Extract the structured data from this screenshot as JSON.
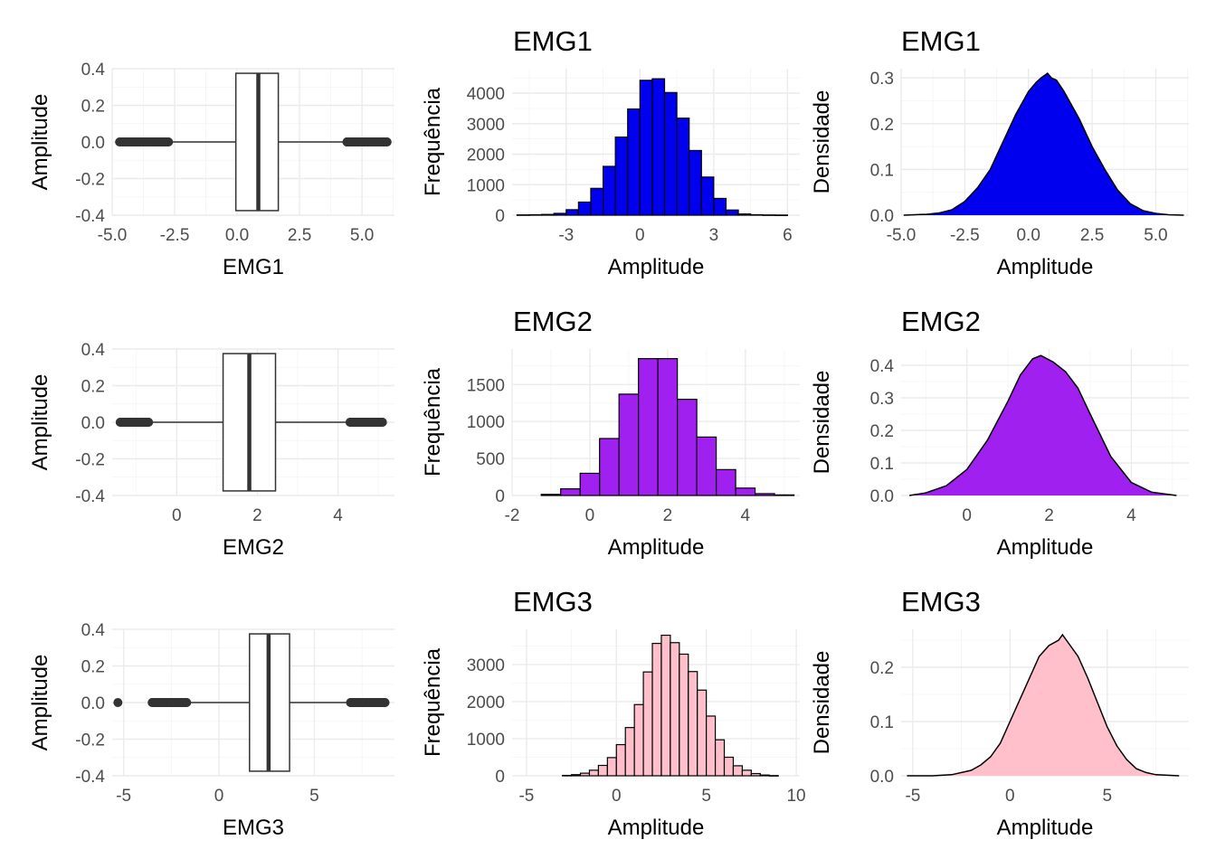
{
  "chart_data": [
    {
      "id": "box-emg1",
      "type": "box",
      "ylabel": "Amplitude",
      "xlabel": "EMG1",
      "title": "",
      "ylim": [
        -0.4,
        0.4
      ],
      "yticks": [
        -0.4,
        -0.2,
        0.0,
        0.2,
        0.4
      ],
      "ytick_labels": [
        "-0.4",
        "-0.2",
        "0.0",
        "0.2",
        "0.4"
      ],
      "xlim": [
        -5.0,
        6.3
      ],
      "xticks": [
        -5.0,
        -2.5,
        0.0,
        2.5,
        5.0
      ],
      "xtick_labels": [
        "-5.0",
        "-2.5",
        "0.0",
        "2.5",
        "5.0"
      ],
      "box": {
        "q1": -0.05,
        "median": 0.85,
        "q3": 1.65,
        "whisker_low": -2.7,
        "whisker_high": 4.3
      },
      "outliers": [
        -4.7,
        -4.3,
        -4.1,
        -3.9,
        -3.7,
        -3.5,
        -3.3,
        -3.1,
        -2.9,
        -2.75,
        4.4,
        4.6,
        4.8,
        5.0,
        5.2,
        5.4,
        5.6,
        5.9,
        6.0
      ],
      "colors": {
        "box_fill": "#ffffff",
        "box_line": "#333333"
      }
    },
    {
      "id": "hist-emg1",
      "type": "histogram",
      "title": "EMG1",
      "xlabel": "Amplitude",
      "ylabel": "Frequência",
      "xlim": [
        -5.2,
        6.5
      ],
      "ylim": [
        0,
        4800
      ],
      "xticks": [
        -3,
        0,
        3,
        6
      ],
      "xtick_labels": [
        "-3",
        "0",
        "3",
        "6"
      ],
      "yticks": [
        0,
        1000,
        2000,
        3000,
        4000
      ],
      "ytick_labels": [
        "0",
        "1000",
        "2000",
        "3000",
        "4000"
      ],
      "bin_width": 0.5,
      "bins": [
        [
          -4.75,
          10
        ],
        [
          -4.25,
          15
        ],
        [
          -3.75,
          25
        ],
        [
          -3.25,
          60
        ],
        [
          -2.75,
          180
        ],
        [
          -2.25,
          430
        ],
        [
          -1.75,
          880
        ],
        [
          -1.25,
          1600
        ],
        [
          -0.75,
          2560
        ],
        [
          -0.25,
          3480
        ],
        [
          0.25,
          4420
        ],
        [
          0.75,
          4470
        ],
        [
          1.25,
          4020
        ],
        [
          1.75,
          3180
        ],
        [
          2.25,
          2120
        ],
        [
          2.75,
          1250
        ],
        [
          3.25,
          550
        ],
        [
          3.75,
          170
        ],
        [
          4.25,
          40
        ],
        [
          4.75,
          15
        ],
        [
          5.25,
          8
        ],
        [
          5.75,
          5
        ]
      ],
      "colors": {
        "fill": "#0000ee",
        "line": "#000000"
      }
    },
    {
      "id": "dens-emg1",
      "type": "area",
      "title": "EMG1",
      "xlabel": "Amplitude",
      "ylabel": "Densidade",
      "xlim": [
        -5.0,
        6.3
      ],
      "ylim": [
        0,
        0.32
      ],
      "xticks": [
        -5.0,
        -2.5,
        0.0,
        2.5,
        5.0
      ],
      "xtick_labels": [
        "-5.0",
        "-2.5",
        "0.0",
        "2.5",
        "5.0"
      ],
      "yticks": [
        0,
        0.1,
        0.2,
        0.3
      ],
      "ytick_labels": [
        "0.0",
        "0.1",
        "0.2",
        "0.3"
      ],
      "x": [
        -4.9,
        -4,
        -3.5,
        -3,
        -2.5,
        -2,
        -1.5,
        -1,
        -0.5,
        0,
        0.3,
        0.5,
        0.75,
        0.9,
        1.1,
        1.4,
        2,
        2.5,
        3,
        3.5,
        4,
        4.5,
        5,
        5.5,
        6.1
      ],
      "y": [
        0.0,
        0.002,
        0.005,
        0.012,
        0.03,
        0.06,
        0.1,
        0.16,
        0.22,
        0.27,
        0.29,
        0.3,
        0.31,
        0.3,
        0.295,
        0.27,
        0.21,
        0.15,
        0.1,
        0.055,
        0.025,
        0.01,
        0.004,
        0.001,
        0.0
      ],
      "colors": {
        "fill": "#0000ee",
        "line": "#000000"
      }
    },
    {
      "id": "box-emg2",
      "type": "box",
      "ylabel": "Amplitude",
      "xlabel": "EMG2",
      "title": "",
      "ylim": [
        -0.4,
        0.4
      ],
      "yticks": [
        -0.4,
        -0.2,
        0.0,
        0.2,
        0.4
      ],
      "ytick_labels": [
        "-0.4",
        "-0.2",
        "0.0",
        "0.2",
        "0.4"
      ],
      "xlim": [
        -1.6,
        5.4
      ],
      "xticks": [
        0,
        2,
        4
      ],
      "xtick_labels": [
        "0",
        "2",
        "4"
      ],
      "box": {
        "q1": 1.15,
        "median": 1.8,
        "q3": 2.45,
        "whisker_low": -0.6,
        "whisker_high": 4.2
      },
      "outliers": [
        -1.4,
        -1.3,
        -1.2,
        -1.1,
        -1.0,
        -0.9,
        -0.8,
        -0.7,
        4.3,
        4.4,
        4.5,
        4.6,
        4.7,
        4.8,
        4.9,
        5.1
      ],
      "colors": {
        "box_fill": "#ffffff",
        "box_line": "#333333"
      }
    },
    {
      "id": "hist-emg2",
      "type": "histogram",
      "title": "EMG2",
      "xlabel": "Amplitude",
      "ylabel": "Frequência",
      "xlim": [
        -2,
        5.4
      ],
      "ylim": [
        0,
        1980
      ],
      "xticks": [
        -2,
        0,
        2,
        4
      ],
      "xtick_labels": [
        "-2",
        "0",
        "2",
        "4"
      ],
      "yticks": [
        0,
        500,
        1000,
        1500
      ],
      "ytick_labels": [
        "0",
        "500",
        "1000",
        "1500"
      ],
      "bin_width": 0.5,
      "bins": [
        [
          -1.0,
          15
        ],
        [
          -0.5,
          90
        ],
        [
          0.0,
          300
        ],
        [
          0.5,
          770
        ],
        [
          1.0,
          1370
        ],
        [
          1.5,
          1850
        ],
        [
          2.0,
          1850
        ],
        [
          2.5,
          1300
        ],
        [
          3.0,
          790
        ],
        [
          3.5,
          350
        ],
        [
          4.0,
          100
        ],
        [
          4.5,
          25
        ],
        [
          5.0,
          8
        ]
      ],
      "colors": {
        "fill": "#a020f0",
        "line": "#000000"
      }
    },
    {
      "id": "dens-emg2",
      "type": "area",
      "title": "EMG2",
      "xlabel": "Amplitude",
      "ylabel": "Densidade",
      "xlim": [
        -1.6,
        5.4
      ],
      "ylim": [
        0,
        0.45
      ],
      "xticks": [
        0,
        2,
        4
      ],
      "xtick_labels": [
        "0",
        "2",
        "4"
      ],
      "yticks": [
        0,
        0.1,
        0.2,
        0.3,
        0.4
      ],
      "ytick_labels": [
        "0.0",
        "0.1",
        "0.2",
        "0.3",
        "0.4"
      ],
      "x": [
        -1.4,
        -1,
        -0.5,
        0,
        0.5,
        1,
        1.3,
        1.6,
        1.8,
        2.1,
        2.4,
        2.7,
        3,
        3.5,
        4,
        4.5,
        5.1
      ],
      "y": [
        0.0,
        0.008,
        0.03,
        0.08,
        0.17,
        0.29,
        0.37,
        0.42,
        0.43,
        0.41,
        0.38,
        0.33,
        0.25,
        0.12,
        0.04,
        0.01,
        0.0
      ],
      "colors": {
        "fill": "#a020f0",
        "line": "#000000"
      }
    },
    {
      "id": "box-emg3",
      "type": "box",
      "ylabel": "Amplitude",
      "xlabel": "EMG3",
      "title": "",
      "ylim": [
        -0.4,
        0.4
      ],
      "yticks": [
        -0.4,
        -0.2,
        0.0,
        0.2,
        0.4
      ],
      "ytick_labels": [
        "-0.4",
        "-0.2",
        "0.0",
        "0.2",
        "0.4"
      ],
      "xlim": [
        -5.6,
        9.2
      ],
      "xticks": [
        -5,
        0,
        5
      ],
      "xtick_labels": [
        "-5",
        "0",
        "5"
      ],
      "box": {
        "q1": 1.6,
        "median": 2.6,
        "q3": 3.7,
        "whisker_low": -1.5,
        "whisker_high": 6.7
      },
      "outliers": [
        -5.3,
        -3.5,
        -3.3,
        -3.1,
        -2.9,
        -2.7,
        -2.5,
        -2.3,
        -2.1,
        -1.9,
        -1.7,
        6.9,
        7.1,
        7.3,
        7.5,
        7.7,
        7.9,
        8.1,
        8.4,
        8.7
      ],
      "colors": {
        "box_fill": "#ffffff",
        "box_line": "#333333"
      }
    },
    {
      "id": "hist-emg3",
      "type": "histogram",
      "title": "EMG3",
      "xlabel": "Amplitude",
      "ylabel": "Frequência",
      "xlim": [
        -5.8,
        10.2
      ],
      "ylim": [
        0,
        3950
      ],
      "xticks": [
        -5,
        0,
        5,
        10
      ],
      "xtick_labels": [
        "-5",
        "0",
        "5",
        "10"
      ],
      "yticks": [
        0,
        1000,
        2000,
        3000
      ],
      "ytick_labels": [
        "0",
        "1000",
        "2000",
        "3000"
      ],
      "bin_width": 0.5,
      "bins": [
        [
          -2.75,
          10
        ],
        [
          -2.25,
          30
        ],
        [
          -1.75,
          70
        ],
        [
          -1.25,
          150
        ],
        [
          -0.75,
          280
        ],
        [
          -0.25,
          490
        ],
        [
          0.25,
          840
        ],
        [
          0.75,
          1300
        ],
        [
          1.25,
          1920
        ],
        [
          1.75,
          2800
        ],
        [
          2.25,
          3570
        ],
        [
          2.75,
          3790
        ],
        [
          3.25,
          3590
        ],
        [
          3.75,
          3280
        ],
        [
          4.25,
          2810
        ],
        [
          4.75,
          2310
        ],
        [
          5.25,
          1610
        ],
        [
          5.75,
          970
        ],
        [
          6.25,
          500
        ],
        [
          6.75,
          270
        ],
        [
          7.25,
          150
        ],
        [
          7.75,
          60
        ],
        [
          8.25,
          20
        ],
        [
          8.75,
          5
        ]
      ],
      "colors": {
        "fill": "#ffc0cb",
        "line": "#000000"
      }
    },
    {
      "id": "dens-emg3",
      "type": "area",
      "title": "EMG3",
      "xlabel": "Amplitude",
      "ylabel": "Densidade",
      "xlim": [
        -5.6,
        9.2
      ],
      "ylim": [
        0,
        0.27
      ],
      "xticks": [
        -5,
        0,
        5
      ],
      "xtick_labels": [
        "-5",
        "0",
        "5"
      ],
      "yticks": [
        0,
        0.1,
        0.2
      ],
      "ytick_labels": [
        "0.0",
        "0.1",
        "0.2"
      ],
      "x": [
        -5.3,
        -4,
        -3,
        -2,
        -1.5,
        -1,
        -0.5,
        0,
        0.5,
        1,
        1.5,
        2,
        2.5,
        2.7,
        3,
        3.5,
        4,
        4.5,
        5,
        5.5,
        6,
        6.5,
        7,
        7.5,
        8.7
      ],
      "y": [
        0.0,
        0.0,
        0.002,
        0.01,
        0.02,
        0.035,
        0.06,
        0.1,
        0.14,
        0.18,
        0.22,
        0.24,
        0.25,
        0.26,
        0.245,
        0.22,
        0.18,
        0.135,
        0.09,
        0.055,
        0.03,
        0.013,
        0.006,
        0.002,
        0.0
      ],
      "colors": {
        "fill": "#ffc0cb",
        "line": "#000000"
      }
    }
  ]
}
